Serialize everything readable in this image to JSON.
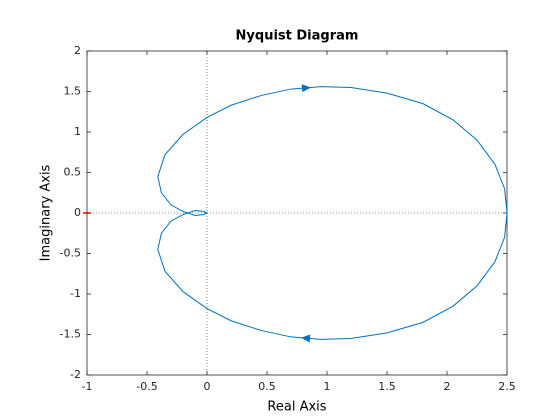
{
  "chart_data": {
    "type": "line",
    "title": "Nyquist Diagram",
    "x_label": "Real Axis",
    "y_label": "Imaginary Axis",
    "x": [
      2.5,
      2.48,
      2.4,
      2.25,
      2.05,
      1.8,
      1.5,
      1.2,
      0.95,
      0.7,
      0.45,
      0.2,
      0,
      -0.2,
      -0.35,
      -0.41,
      -0.38,
      -0.3,
      -0.2,
      -0.1,
      -0.03,
      0,
      -0.03,
      -0.1,
      -0.2,
      -0.3,
      -0.38,
      -0.41,
      -0.35,
      -0.2,
      0,
      0.2,
      0.45,
      0.7,
      0.95,
      1.2,
      1.5,
      1.8,
      2.05,
      2.25,
      2.4,
      2.48,
      2.5
    ],
    "values": [
      0,
      -0.3,
      -0.6,
      -0.9,
      -1.15,
      -1.35,
      -1.48,
      -1.55,
      -1.56,
      -1.53,
      -1.45,
      -1.33,
      -1.18,
      -0.97,
      -0.72,
      -0.45,
      -0.25,
      -0.1,
      -0.02,
      0.03,
      0.02,
      0,
      -0.02,
      -0.03,
      0.02,
      0.1,
      0.25,
      0.45,
      0.72,
      0.97,
      1.18,
      1.33,
      1.45,
      1.53,
      1.56,
      1.55,
      1.48,
      1.35,
      1.15,
      0.9,
      0.6,
      0.3,
      0
    ],
    "color": "#0072bd",
    "xlim": [
      -1,
      2.5
    ],
    "xticks": [
      -1,
      -0.5,
      0,
      0.5,
      1,
      1.5,
      2,
      2.5
    ],
    "ylim": [
      -2,
      2
    ],
    "yticks": [
      -2,
      -1.5,
      -1,
      -0.5,
      0,
      0.5,
      1,
      1.5,
      2
    ],
    "critical_point": {
      "x": -1,
      "y": 0,
      "color": "#ff0000"
    }
  }
}
